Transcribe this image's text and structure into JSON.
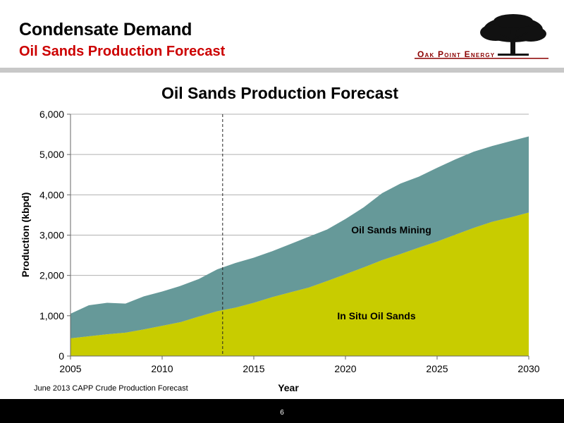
{
  "header": {
    "title": "Condensate Demand",
    "subtitle": "Oil Sands Production Forecast"
  },
  "logo": {
    "text": "Oak Point Energy",
    "icon": "tree-icon"
  },
  "source_note": "June 2013 CAPP Crude Production Forecast",
  "footer": {
    "page_number": "6"
  },
  "colors": {
    "subtitle": "#cc0000",
    "in_situ": "#c8cc00",
    "mining": "#669999",
    "footer": "#000000"
  },
  "chart_data": {
    "type": "area",
    "stacked": true,
    "title": "Oil Sands Production Forecast",
    "xlabel": "Year",
    "ylabel": "Production (kbpd)",
    "xlim": [
      2005,
      2030
    ],
    "ylim": [
      0,
      6000
    ],
    "x_ticks": [
      2005,
      2010,
      2015,
      2020,
      2025,
      2030
    ],
    "y_ticks": [
      0,
      1000,
      2000,
      3000,
      4000,
      5000,
      6000
    ],
    "y_tick_labels": [
      "0",
      "1,000",
      "2,000",
      "3,000",
      "4,000",
      "5,000",
      "6,000"
    ],
    "grid": "horizontal",
    "forecast_marker_x": 2013.3,
    "x": [
      2005,
      2006,
      2007,
      2008,
      2009,
      2010,
      2011,
      2012,
      2013,
      2014,
      2015,
      2016,
      2017,
      2018,
      2019,
      2020,
      2021,
      2022,
      2023,
      2024,
      2025,
      2026,
      2027,
      2028,
      2029,
      2030
    ],
    "series": [
      {
        "name": "In Situ Oil Sands",
        "color": "#c8cc00",
        "values": [
          440,
          490,
          540,
          580,
          660,
          750,
          840,
          980,
          1110,
          1200,
          1320,
          1460,
          1580,
          1700,
          1860,
          2030,
          2200,
          2380,
          2530,
          2690,
          2840,
          3010,
          3180,
          3330,
          3440,
          3560
        ]
      },
      {
        "name": "Oil Sands Mining",
        "color": "#669999",
        "values": [
          610,
          770,
          780,
          720,
          820,
          850,
          900,
          930,
          1040,
          1110,
          1120,
          1140,
          1200,
          1260,
          1280,
          1370,
          1490,
          1660,
          1750,
          1760,
          1830,
          1870,
          1890,
          1880,
          1890,
          1890
        ]
      }
    ],
    "series_labels": [
      "Oil Sands Mining",
      "In Situ Oil Sands"
    ]
  }
}
